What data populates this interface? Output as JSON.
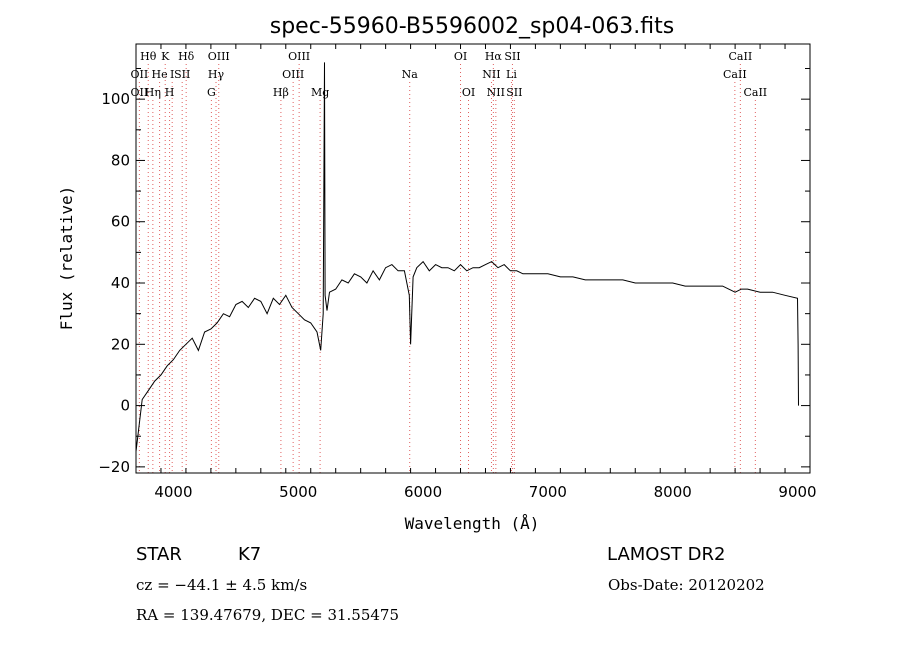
{
  "chart_data": {
    "type": "line",
    "title": "spec-55960-B5596002_sp04-063.fits",
    "xlabel": "Wavelength (Å)",
    "ylabel": "Flux (relative)",
    "xlim": [
      3700,
      9100
    ],
    "ylim": [
      -22,
      118
    ],
    "xticks": [
      4000,
      5000,
      6000,
      7000,
      8000,
      9000
    ],
    "yticks": [
      -20,
      0,
      20,
      40,
      60,
      80,
      100
    ],
    "grid": false,
    "line_color": "#000000",
    "marker_color": "#e06060",
    "series": [
      {
        "x": [
          3700,
          3750,
          3800,
          3850,
          3900,
          3950,
          4000,
          4050,
          4100,
          4150,
          4200,
          4250,
          4300,
          4350,
          4400,
          4450,
          4500,
          4550,
          4600,
          4650,
          4700,
          4750,
          4800,
          4850,
          4900,
          4950,
          5000,
          5050,
          5100,
          5150,
          5180,
          5200,
          5210,
          5215,
          5230,
          5250,
          5300,
          5350,
          5400,
          5450,
          5500,
          5550,
          5600,
          5650,
          5700,
          5750,
          5800,
          5850,
          5890,
          5900,
          5920,
          5950,
          6000,
          6050,
          6100,
          6150,
          6200,
          6250,
          6300,
          6350,
          6400,
          6450,
          6500,
          6550,
          6600,
          6650,
          6700,
          6750,
          6800,
          6900,
          7000,
          7100,
          7200,
          7300,
          7400,
          7500,
          7600,
          7700,
          7800,
          7900,
          8000,
          8100,
          8200,
          8300,
          8400,
          8500,
          8550,
          8600,
          8700,
          8800,
          8900,
          9000,
          9005,
          9008
        ],
        "y": [
          -15,
          2,
          5,
          8,
          10,
          13,
          15,
          18,
          20,
          22,
          18,
          24,
          25,
          27,
          30,
          29,
          33,
          34,
          32,
          35,
          34,
          30,
          35,
          33,
          36,
          32,
          30,
          28,
          27,
          24,
          18,
          30,
          112,
          36,
          31,
          37,
          38,
          41,
          40,
          43,
          42,
          40,
          44,
          41,
          45,
          46,
          44,
          44,
          36,
          20,
          42,
          45,
          47,
          44,
          46,
          45,
          45,
          44,
          46,
          44,
          45,
          45,
          46,
          47,
          45,
          46,
          44,
          44,
          43,
          43,
          43,
          42,
          42,
          41,
          41,
          41,
          41,
          40,
          40,
          40,
          40,
          39,
          39,
          39,
          39,
          37,
          38,
          38,
          37,
          37,
          36,
          35,
          20,
          0
        ]
      }
    ],
    "lines": {
      "top": [
        {
          "label": "Hθ",
          "x": 3798
        },
        {
          "label": "K",
          "x": 3934
        },
        {
          "label": "Hδ",
          "x": 4102
        },
        {
          "label": "OIII",
          "x": 4363
        },
        {
          "label": "OIII",
          "x": 5007
        },
        {
          "label": "OI",
          "x": 6300
        },
        {
          "label": "Hα",
          "x": 6563
        },
        {
          "label": "SII",
          "x": 6716
        },
        {
          "label": "CaII",
          "x": 8542
        }
      ],
      "middle": [
        {
          "label": "OII",
          "x": 3727
        },
        {
          "label": "He",
          "x": 3889
        },
        {
          "label": "I",
          "x": 3990
        },
        {
          "label": "SII",
          "x": 4070
        },
        {
          "label": "Hγ",
          "x": 4341
        },
        {
          "label": "OIII",
          "x": 4959
        },
        {
          "label": "Na",
          "x": 5893
        },
        {
          "label": "NII",
          "x": 6548
        },
        {
          "label": "Li",
          "x": 6708
        },
        {
          "label": "CaII",
          "x": 8498
        }
      ],
      "bottom": [
        {
          "label": "OII",
          "x": 3727
        },
        {
          "label": "Hη",
          "x": 3835
        },
        {
          "label": "H",
          "x": 3969
        },
        {
          "label": "G",
          "x": 4304
        },
        {
          "label": "Hβ",
          "x": 4861
        },
        {
          "label": "Mg",
          "x": 5175
        },
        {
          "label": "OI",
          "x": 6364
        },
        {
          "label": "NII",
          "x": 6583
        },
        {
          "label": "SII",
          "x": 6731
        },
        {
          "label": "CaII",
          "x": 8662
        }
      ]
    }
  },
  "info": {
    "class": "STAR",
    "subclass": "K7",
    "survey": "LAMOST DR2",
    "cz": "cz = −44.1 ± 4.5 km/s",
    "obs_date": "Obs-Date: 20120202",
    "coords": "RA = 139.47679, DEC =  31.55475"
  }
}
